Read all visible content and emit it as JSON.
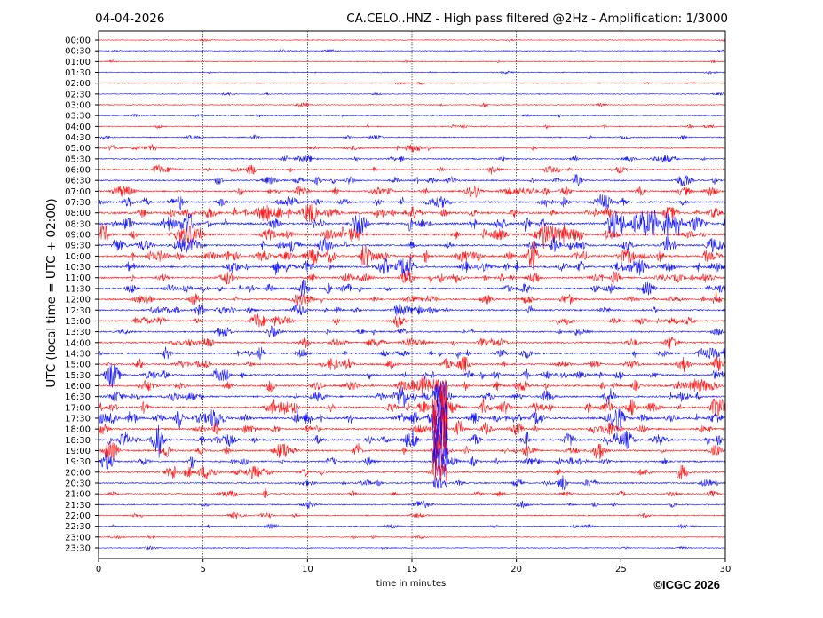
{
  "chart_data": {
    "type": "line",
    "subtype": "helicorder",
    "date": "04-04-2026",
    "title": "CA.CELO..HNZ - High pass filtered @2Hz - Amplification: 1/3000",
    "xlabel": "time in minutes",
    "ylabel": "UTC (local time = UTC + 02:00)",
    "xlim": [
      0,
      30
    ],
    "xticks": [
      "0",
      "5",
      "10",
      "15",
      "20",
      "25",
      "30"
    ],
    "xtick_values": [
      0,
      5,
      10,
      15,
      20,
      25,
      30
    ],
    "grid": "vertical dotted at 5-minute intervals",
    "rows": [
      "00:00",
      "00:30",
      "01:00",
      "01:30",
      "02:00",
      "02:30",
      "03:00",
      "03:30",
      "04:00",
      "04:30",
      "05:00",
      "05:30",
      "06:00",
      "06:30",
      "07:00",
      "07:30",
      "08:00",
      "08:30",
      "09:00",
      "09:30",
      "10:00",
      "10:30",
      "11:00",
      "11:30",
      "12:00",
      "12:30",
      "13:00",
      "13:30",
      "14:00",
      "14:30",
      "15:00",
      "15:30",
      "16:00",
      "16:30",
      "17:00",
      "17:30",
      "18:00",
      "18:30",
      "19:00",
      "19:30",
      "20:00",
      "20:30",
      "21:00",
      "21:30",
      "22:00",
      "22:30",
      "23:00",
      "23:30"
    ],
    "row_activity": [
      0.02,
      0.05,
      0.05,
      0.06,
      0.04,
      0.04,
      0.1,
      0.1,
      0.15,
      0.15,
      0.25,
      0.3,
      0.35,
      0.4,
      0.5,
      0.55,
      0.7,
      0.9,
      0.7,
      0.7,
      0.75,
      0.7,
      0.6,
      0.55,
      0.5,
      0.5,
      0.45,
      0.4,
      0.45,
      0.5,
      0.55,
      0.6,
      0.6,
      0.6,
      0.7,
      0.8,
      0.6,
      0.7,
      0.6,
      0.5,
      0.45,
      0.35,
      0.3,
      0.25,
      0.2,
      0.15,
      0.08,
      0.06
    ],
    "event": {
      "start_row": "16:00",
      "end_row": "20:30",
      "minutes": [
        16.0,
        16.7
      ]
    },
    "colors": {
      "hour": "#ff0000",
      "half_hour": "#0000ff"
    }
  },
  "footer": {
    "copyright": "©ICGC 2026"
  }
}
